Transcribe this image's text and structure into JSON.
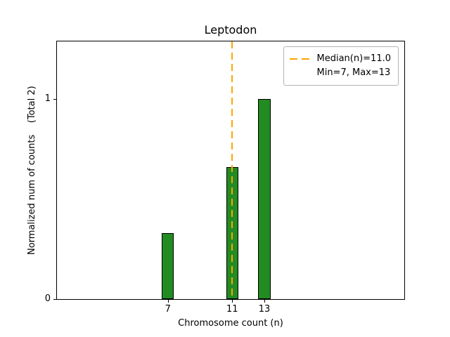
{
  "chart_data": {
    "type": "bar",
    "title": "Leptodon",
    "xlabel": "Chromosome count (n)",
    "ylabel": "Normalized num of counts    (Total 2)",
    "x": [
      7,
      11,
      13
    ],
    "values": [
      0.33,
      0.66,
      1.0
    ],
    "bar_width_units": 0.75,
    "xlim": [
      0.1,
      21.7
    ],
    "ylim": [
      0,
      1.286
    ],
    "xticks": [
      "7",
      "11",
      "13"
    ],
    "xtick_positions": [
      7,
      11,
      13
    ],
    "yticks": [
      "0",
      "1"
    ],
    "ytick_positions": [
      0,
      1
    ],
    "bar_color": "#228B22",
    "bar_edge_color": "#000000",
    "median_line": {
      "x": 11,
      "color": "#FFA500",
      "style": "dashed",
      "label": "Median(n)=11.0"
    },
    "legend": {
      "position": "upper right",
      "entries": [
        "Median(n)=11.0",
        "Min=7, Max=13"
      ]
    }
  }
}
